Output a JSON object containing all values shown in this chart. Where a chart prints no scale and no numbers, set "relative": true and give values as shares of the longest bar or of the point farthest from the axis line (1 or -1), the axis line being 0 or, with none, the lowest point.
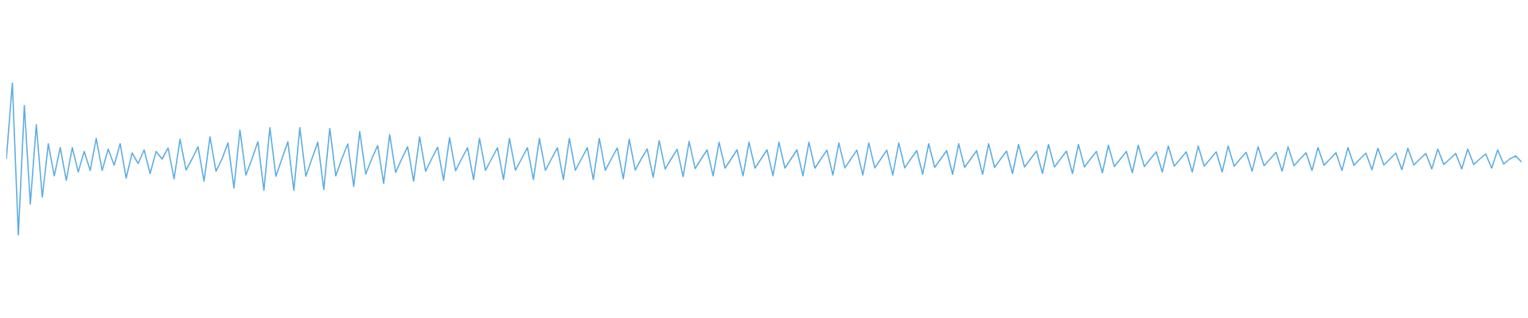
{
  "chart_data": {
    "type": "line",
    "relative": true,
    "categories": [
      null,
      null,
      null,
      null,
      null,
      null,
      null,
      null,
      null,
      null,
      null,
      null,
      null,
      null,
      null,
      null,
      null,
      null,
      null,
      null,
      null,
      null,
      null,
      null,
      null,
      null,
      null,
      null,
      null,
      null,
      null,
      null,
      null,
      null,
      null,
      null,
      null,
      null,
      null,
      null,
      null,
      null,
      null,
      null,
      null,
      null,
      null,
      null,
      null,
      null,
      null,
      null,
      null,
      null,
      null,
      null,
      null,
      null,
      null,
      null,
      null,
      null,
      null,
      null,
      null,
      null,
      null,
      null,
      null,
      null,
      null,
      null,
      null,
      null,
      null,
      null,
      null,
      null,
      null,
      null,
      null,
      null,
      null,
      null,
      null,
      null,
      null,
      null,
      null,
      null,
      null,
      null,
      null,
      null,
      null,
      null,
      null,
      null,
      null,
      null,
      null,
      null,
      null,
      null,
      null,
      null,
      null,
      null,
      null,
      null,
      null,
      null,
      null,
      null,
      null,
      null,
      null,
      null,
      null,
      null,
      null,
      null,
      null,
      null,
      null,
      null,
      null,
      null,
      null,
      null,
      null,
      null,
      null,
      null,
      null,
      null,
      null,
      null,
      null,
      null,
      null,
      null,
      null,
      null,
      null,
      null,
      null,
      null,
      null,
      null,
      null,
      null,
      null,
      null,
      null,
      null,
      null,
      null,
      null,
      null,
      null,
      null,
      null,
      null,
      null,
      null,
      null,
      null,
      null,
      null,
      null,
      null,
      null,
      null,
      null,
      null,
      null,
      null,
      null,
      null,
      null,
      null,
      null,
      null,
      null,
      null,
      null,
      null,
      null,
      null,
      null,
      null,
      null,
      null,
      null,
      null,
      null,
      null,
      null,
      null,
      null,
      null,
      null,
      null,
      null,
      null,
      null,
      null,
      null,
      null,
      null,
      null,
      null,
      null,
      null,
      null,
      null,
      null,
      null,
      null,
      null,
      null,
      null,
      null,
      null,
      null,
      null,
      null,
      null,
      null,
      null,
      null,
      null,
      null,
      null,
      null,
      null,
      null,
      null,
      null,
      null,
      null,
      null,
      null,
      null,
      null,
      null,
      null,
      null,
      null,
      null,
      null,
      null,
      null
    ],
    "series": [
      {
        "color": "#5dade2",
        "values": [
          0.5,
          1.0,
          0,
          0.85,
          0.205,
          0.725,
          0.25,
          0.6,
          0.39,
          0.575,
          0.36,
          0.575,
          0.415,
          0.55,
          0.425,
          0.635,
          0.425,
          0.565,
          0.46,
          0.6,
          0.375,
          0.54,
          0.47,
          0.56,
          0.405,
          0.55,
          0.5,
          0.572,
          0.37,
          0.63,
          0.428,
          0.5,
          0.58,
          0.355,
          0.645,
          0.42,
          0.5,
          0.605,
          0.31,
          0.69,
          0.395,
          0.5,
          0.613,
          0.295,
          0.705,
          0.387,
          0.5,
          0.613,
          0.295,
          0.705,
          0.387,
          0.5,
          0.61,
          0.3,
          0.7,
          0.39,
          0.5,
          0.599,
          0.32,
          0.68,
          0.401,
          0.5,
          0.588,
          0.34,
          0.66,
          0.412,
          0.5,
          0.58,
          0.355,
          0.645,
          0.42,
          0.5,
          0.577,
          0.36,
          0.64,
          0.423,
          0.5,
          0.574,
          0.365,
          0.635,
          0.426,
          0.5,
          0.574,
          0.365,
          0.635,
          0.426,
          0.5,
          0.574,
          0.365,
          0.635,
          0.426,
          0.5,
          0.574,
          0.365,
          0.635,
          0.426,
          0.5,
          0.574,
          0.365,
          0.635,
          0.426,
          0.5,
          0.572,
          0.37,
          0.63,
          0.428,
          0.5,
          0.566,
          0.38,
          0.62,
          0.434,
          0.5,
          0.563,
          0.385,
          0.615,
          0.437,
          0.5,
          0.56,
          0.39,
          0.61,
          0.44,
          0.5,
          0.56,
          0.39,
          0.61,
          0.44,
          0.5,
          0.56,
          0.39,
          0.61,
          0.44,
          0.5,
          0.56,
          0.39,
          0.61,
          0.44,
          0.5,
          0.558,
          0.395,
          0.605,
          0.442,
          0.5,
          0.558,
          0.395,
          0.605,
          0.442,
          0.5,
          0.558,
          0.395,
          0.605,
          0.442,
          0.5,
          0.555,
          0.4,
          0.6,
          0.445,
          0.5,
          0.555,
          0.4,
          0.6,
          0.445,
          0.5,
          0.555,
          0.4,
          0.6,
          0.445,
          0.5,
          0.552,
          0.405,
          0.595,
          0.448,
          0.5,
          0.552,
          0.405,
          0.595,
          0.448,
          0.5,
          0.552,
          0.405,
          0.595,
          0.448,
          0.5,
          0.55,
          0.41,
          0.59,
          0.45,
          0.5,
          0.55,
          0.41,
          0.59,
          0.45,
          0.5,
          0.547,
          0.415,
          0.585,
          0.453,
          0.5,
          0.547,
          0.415,
          0.585,
          0.453,
          0.5,
          0.547,
          0.415,
          0.585,
          0.453,
          0.5,
          0.544,
          0.42,
          0.58,
          0.456,
          0.5,
          0.544,
          0.42,
          0.58,
          0.456,
          0.5,
          0.541,
          0.425,
          0.575,
          0.459,
          0.5,
          0.541,
          0.425,
          0.575,
          0.459,
          0.5,
          0.539,
          0.43,
          0.57,
          0.461,
          0.5,
          0.539,
          0.43,
          0.57,
          0.461,
          0.5,
          0.536,
          0.435,
          0.565,
          0.464,
          0.5,
          0.536,
          0.435,
          0.565,
          0.464,
          0.5,
          0.533,
          0.44,
          0.56,
          0.467,
          0.5,
          0.52,
          0.48
        ]
      }
    ]
  }
}
